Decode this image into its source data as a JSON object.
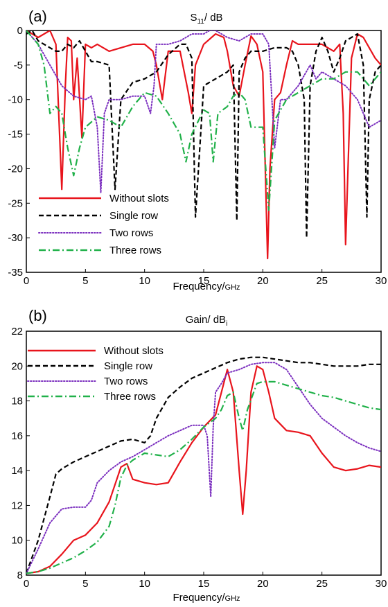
{
  "chart_data": [
    {
      "type": "line",
      "panel_label": "(a)",
      "title": {
        "main": "S",
        "sub": "11",
        "rest": "/ dB"
      },
      "xlabel": {
        "main": "Frequency/",
        "unit": "GHz"
      },
      "ylabel": "",
      "xlim": [
        0,
        30
      ],
      "ylim": [
        -35,
        0
      ],
      "xticks": [
        0,
        5,
        10,
        15,
        20,
        25,
        30
      ],
      "yticks": [
        0,
        -5,
        -10,
        -15,
        -20,
        -25,
        -30,
        -35
      ],
      "grid": false,
      "legend_position": "bottom-left",
      "series": [
        {
          "name": "Without slots",
          "color": "#e8141c",
          "style": "solid",
          "x": [
            0,
            1,
            2,
            2.5,
            3,
            3.3,
            3.5,
            3.8,
            4,
            4.3,
            4.7,
            5,
            5.5,
            6,
            7,
            8,
            9,
            10,
            10.7,
            11,
            11.5,
            12,
            13,
            13.7,
            14,
            14.3,
            15,
            16,
            16.7,
            17,
            17.5,
            18,
            18.5,
            19,
            19.5,
            20,
            20.4,
            20.6,
            21,
            21.5,
            22,
            22.5,
            23,
            24,
            25,
            26,
            26.5,
            26.8,
            27,
            27.5,
            28,
            28.5,
            29,
            29.5,
            30
          ],
          "y": [
            0,
            -1,
            0,
            -2,
            -23,
            -8,
            -1,
            -1.5,
            -10,
            -4,
            -15.5,
            -2,
            -2.5,
            -2,
            -3,
            -2.5,
            -2,
            -2,
            -3,
            -5,
            -10,
            -3,
            -3,
            -9,
            -12,
            -5,
            -2,
            -0.5,
            -1,
            -3,
            -8,
            -9.5,
            -5,
            -0.8,
            -2,
            -6,
            -33,
            -20,
            -10,
            -9,
            -5,
            -1.5,
            -2,
            -2,
            -2,
            -3,
            -2,
            -12,
            -31,
            -4,
            -0.5,
            -1,
            -2.5,
            -4,
            -5
          ]
        },
        {
          "name": "Single row",
          "color": "#000000",
          "style": "dash",
          "x": [
            0,
            0.5,
            1,
            2,
            2.5,
            3,
            3.5,
            4,
            4.5,
            5,
            5.5,
            6,
            7,
            7.5,
            8,
            9,
            10,
            11,
            12,
            13,
            13.5,
            14,
            14.3,
            15,
            16,
            17,
            17.5,
            17.8,
            18,
            18.5,
            19,
            20,
            21,
            22,
            22.5,
            23,
            23.5,
            23.7,
            24,
            24.5,
            25,
            25.5,
            26,
            26.5,
            27,
            28,
            28.5,
            28.8,
            29,
            29.5,
            30
          ],
          "y": [
            -0.5,
            0,
            -1.5,
            -2.5,
            -3,
            -3,
            -2,
            -2.5,
            -1.5,
            -3,
            -4.5,
            -4.5,
            -5,
            -23,
            -10,
            -7.5,
            -7,
            -6,
            -3.5,
            -2,
            -2,
            -4,
            -27,
            -8,
            -7,
            -6,
            -5,
            -27.5,
            -6,
            -4,
            -3,
            -3,
            -2.5,
            -2.5,
            -3,
            -5,
            -10,
            -30,
            -8,
            -3,
            -1,
            -3,
            -6,
            -4,
            -1.5,
            -0.5,
            -5,
            -27,
            -10,
            -6,
            -5
          ]
        },
        {
          "name": "Two rows",
          "color": "#7b2fbf",
          "style": "dot",
          "x": [
            0,
            1,
            2,
            3,
            4,
            5,
            5.5,
            6,
            6.3,
            6.6,
            7,
            8,
            9,
            10,
            10.5,
            10.8,
            11,
            12,
            13,
            14,
            15,
            15.5,
            16,
            16.5,
            17,
            18,
            19,
            20,
            20.5,
            21,
            21.5,
            22,
            23,
            24,
            24.5,
            25,
            26,
            27,
            28,
            29,
            30
          ],
          "y": [
            0,
            -2,
            -5,
            -8,
            -9.5,
            -10,
            -9.5,
            -14,
            -23.5,
            -12,
            -10,
            -10,
            -9.5,
            -9.5,
            -12,
            -8,
            -2,
            -2,
            -1.5,
            -0.5,
            -0.5,
            0,
            0,
            -0.5,
            -1,
            -1.5,
            -0.5,
            -0.5,
            -2,
            -17,
            -10,
            -10,
            -8,
            -5,
            -7,
            -6,
            -7,
            -8,
            -10,
            -14,
            -13
          ]
        },
        {
          "name": "Three rows",
          "color": "#21b14a",
          "style": "dashdot",
          "x": [
            0,
            1,
            1.5,
            2,
            2.5,
            3,
            3.5,
            4,
            4.5,
            5,
            6,
            7,
            8,
            9,
            10,
            11,
            12,
            13,
            13.5,
            14,
            15,
            15.5,
            15.8,
            16.2,
            17,
            17.5,
            18,
            18.5,
            19,
            19.5,
            20,
            20.5,
            21,
            22,
            23,
            24,
            25,
            26,
            27,
            28,
            29,
            30
          ],
          "y": [
            0,
            -2,
            -5,
            -12,
            -11,
            -12,
            -17,
            -21,
            -17,
            -14,
            -12.5,
            -13,
            -14,
            -11,
            -9,
            -9.5,
            -12,
            -15,
            -19,
            -15,
            -11.5,
            -12,
            -19,
            -12,
            -11,
            -9.5,
            -9,
            -10,
            -14,
            -14,
            -14,
            -26,
            -13,
            -10,
            -9,
            -8,
            -7,
            -7,
            -6,
            -6,
            -8,
            -6
          ]
        }
      ]
    },
    {
      "type": "line",
      "panel_label": "(b)",
      "title": {
        "main": "Gain/ dB",
        "sub": "i",
        "rest": ""
      },
      "xlabel": {
        "main": "Frequency/",
        "unit": "GHz"
      },
      "ylabel": "",
      "xlim": [
        0,
        30
      ],
      "ylim": [
        8,
        22
      ],
      "xticks": [
        0,
        5,
        10,
        15,
        20,
        25,
        30
      ],
      "yticks": [
        8,
        10,
        12,
        14,
        16,
        18,
        20,
        22
      ],
      "grid": false,
      "legend_position": "top-left",
      "series": [
        {
          "name": "Without slots",
          "color": "#e8141c",
          "style": "solid",
          "x": [
            0,
            1,
            2,
            3,
            4,
            5,
            6,
            7,
            7.5,
            8,
            8.5,
            9,
            10,
            11,
            12,
            13,
            14,
            15,
            16,
            16.5,
            17,
            17.5,
            18,
            18.3,
            18.6,
            19,
            19.5,
            20,
            20.5,
            21,
            22,
            23,
            24,
            25,
            26,
            27,
            28,
            29,
            30
          ],
          "y": [
            8.1,
            8.2,
            8.5,
            9.2,
            10,
            10.3,
            11,
            12.2,
            13.2,
            14.2,
            14.4,
            13.5,
            13.3,
            13.2,
            13.3,
            14.5,
            15.6,
            16.5,
            17.2,
            18.5,
            19.8,
            18.5,
            14,
            11.5,
            14,
            18.5,
            20,
            19.8,
            18.5,
            17,
            16.3,
            16.2,
            16,
            15,
            14.2,
            14,
            14.1,
            14.3,
            14.2
          ]
        },
        {
          "name": "Single row",
          "color": "#000000",
          "style": "dash",
          "x": [
            0,
            1,
            2,
            2.5,
            3,
            4,
            5,
            6,
            7,
            8,
            9,
            10,
            10.5,
            11,
            12,
            13,
            14,
            15,
            16,
            17,
            18,
            19,
            20,
            21,
            22,
            23,
            24,
            25,
            26,
            27,
            28,
            29,
            30
          ],
          "y": [
            8.1,
            10,
            12.5,
            13.8,
            14.1,
            14.5,
            14.8,
            15.1,
            15.4,
            15.7,
            15.8,
            15.6,
            16,
            17,
            18.2,
            18.8,
            19.3,
            19.6,
            19.9,
            20.2,
            20.4,
            20.5,
            20.5,
            20.4,
            20.3,
            20.2,
            20.2,
            20.1,
            20,
            20,
            20,
            20.1,
            20.1
          ]
        },
        {
          "name": "Two rows",
          "color": "#7b2fbf",
          "style": "dot",
          "x": [
            0,
            1,
            2,
            3,
            4,
            5,
            5.5,
            6,
            7,
            8,
            9,
            10,
            11,
            12,
            13,
            14,
            15,
            15.3,
            15.6,
            15.8,
            16,
            16.5,
            17,
            18,
            19,
            20,
            21,
            22,
            23,
            24,
            25,
            26,
            27,
            28,
            29,
            30
          ],
          "y": [
            8.1,
            9.5,
            11,
            11.8,
            11.9,
            11.9,
            12.3,
            13.3,
            14,
            14.5,
            14.8,
            15.2,
            15.6,
            16,
            16.3,
            16.6,
            16.6,
            16,
            12.5,
            16.5,
            18.5,
            19,
            19.6,
            19.8,
            20.1,
            20.2,
            20.2,
            19.8,
            18.8,
            17.8,
            17,
            16.5,
            16,
            15.6,
            15.3,
            15.1
          ]
        },
        {
          "name": "Three rows",
          "color": "#21b14a",
          "style": "dashdot",
          "x": [
            0,
            1,
            2,
            3,
            4,
            5,
            6,
            7,
            7.5,
            8,
            8.5,
            9,
            10,
            11,
            12,
            13,
            14,
            15,
            16,
            16.5,
            17,
            17.5,
            18,
            18.3,
            18.7,
            19.5,
            20,
            21,
            22,
            23,
            24,
            25,
            26,
            27,
            28,
            29,
            30
          ],
          "y": [
            8.1,
            8.2,
            8.4,
            8.7,
            9,
            9.4,
            9.9,
            10.8,
            12,
            13.6,
            14.3,
            14.6,
            15,
            14.9,
            14.8,
            15.2,
            15.8,
            16.5,
            17,
            17.5,
            18.3,
            18.5,
            17,
            16.3,
            17.5,
            19,
            19.1,
            19.1,
            18.9,
            18.7,
            18.5,
            18.3,
            18.2,
            18,
            17.8,
            17.6,
            17.5
          ]
        }
      ]
    }
  ]
}
